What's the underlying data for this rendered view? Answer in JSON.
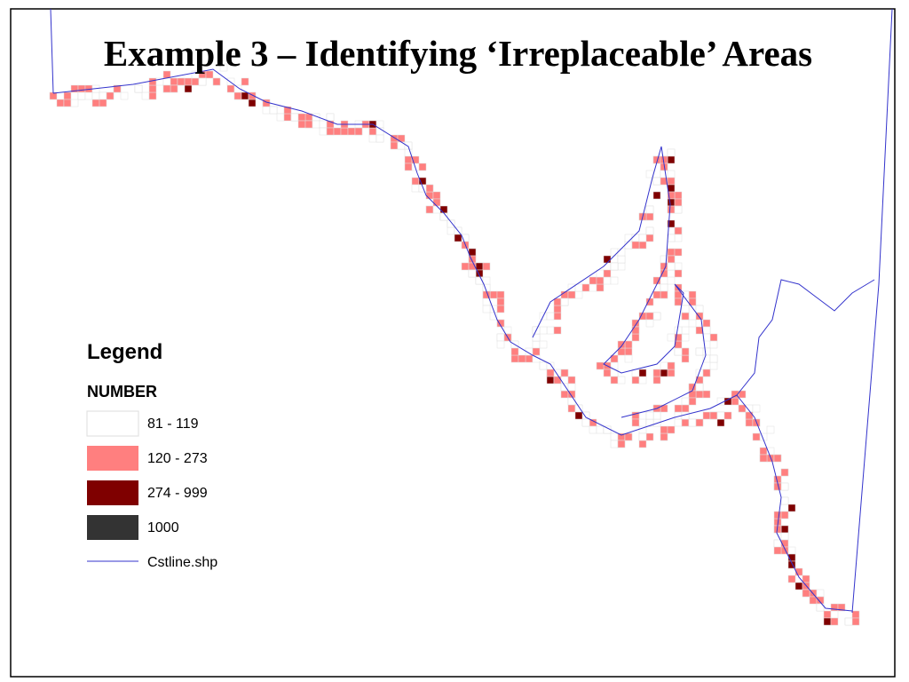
{
  "title": "Example 3 – Identifying ‘Irreplaceable’ Areas",
  "legend": {
    "title": "Legend",
    "field": "NUMBER",
    "items": [
      {
        "label": "81 - 119",
        "color": "#ffffff"
      },
      {
        "label": "120 - 273",
        "color": "#ff7f7f"
      },
      {
        "label": "274 - 999",
        "color": "#7f0000"
      },
      {
        "label": "1000",
        "color": "#333333"
      }
    ],
    "line": {
      "label": "Cstline.shp",
      "color": "#3333cc"
    }
  }
}
